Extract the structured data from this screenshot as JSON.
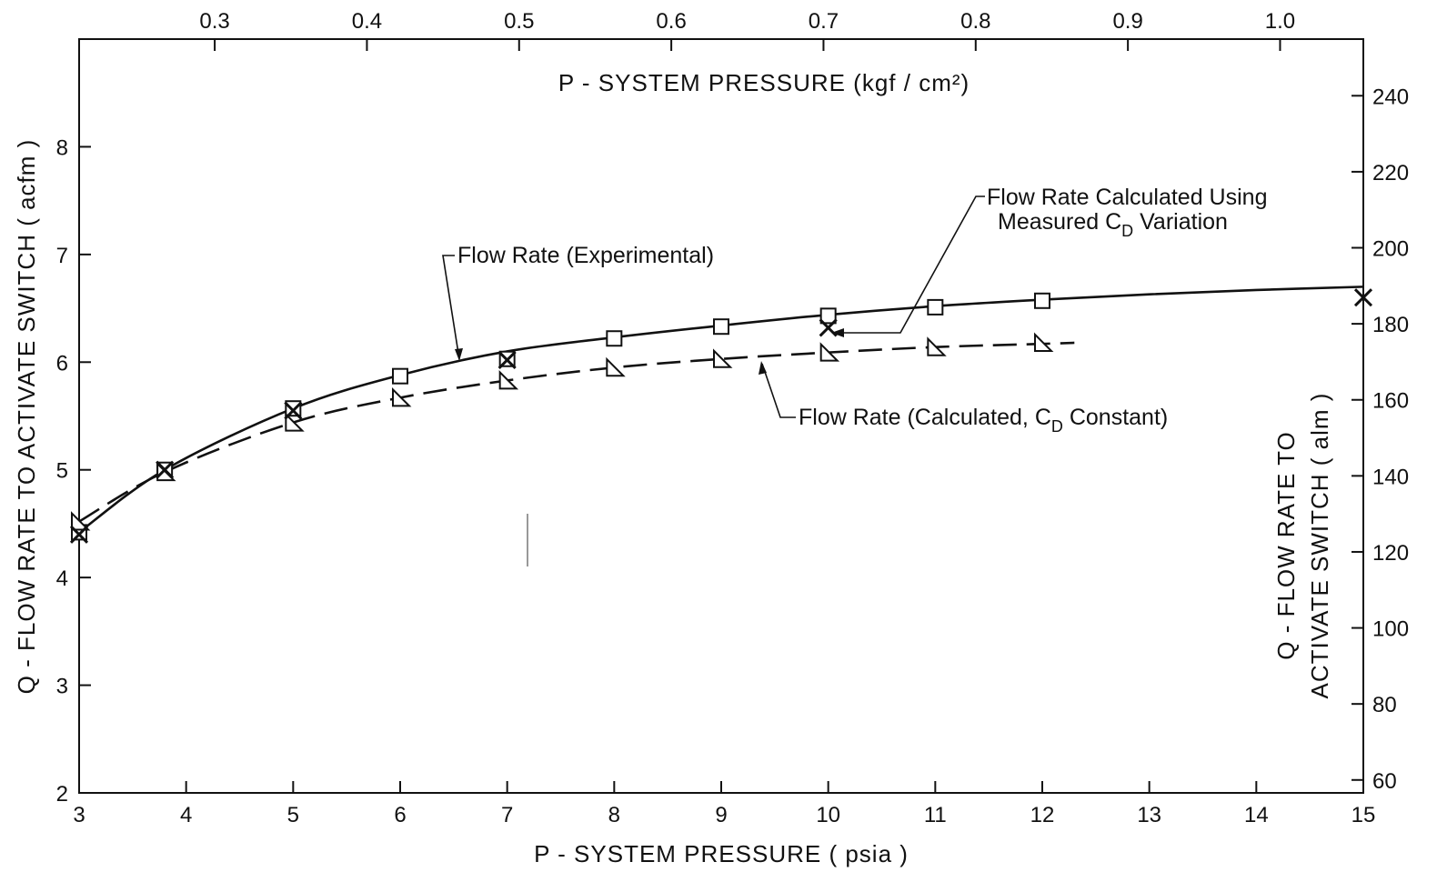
{
  "chart_data": {
    "type": "line",
    "title": "",
    "xlabel": "P - SYSTEM  PRESSURE ( psia )",
    "ylabel": "Q - FLOW RATE TO ACTIVATE SWITCH  ( acfm )",
    "top_xlabel": "P - SYSTEM  PRESSURE (kgf / cm²)",
    "right_ylabel_line1": "Q - FLOW RATE TO",
    "right_ylabel_line2": "ACTIVATE SWITCH  ( alm )",
    "xlim": [
      3,
      15
    ],
    "ylim": [
      2,
      9
    ],
    "x_ticks": [
      3,
      4,
      5,
      6,
      7,
      8,
      9,
      10,
      11,
      12,
      13,
      14,
      15
    ],
    "y_ticks": [
      2,
      3,
      4,
      5,
      6,
      7,
      8
    ],
    "top_xlim": [
      0.2109,
      1.0547
    ],
    "top_ticks": [
      "0.3",
      "0.4",
      "0.5",
      "0.6",
      "0.7",
      "0.8",
      "0.9",
      "1.0"
    ],
    "top_tick_values": [
      0.3,
      0.4,
      0.5,
      0.6,
      0.7,
      0.8,
      0.9,
      1.0
    ],
    "right_ylim": [
      56.6,
      254.9
    ],
    "right_ticks": [
      "60",
      "80",
      "100",
      "120",
      "140",
      "160",
      "180",
      "200",
      "220",
      "240"
    ],
    "right_tick_values": [
      60,
      80,
      100,
      120,
      140,
      160,
      180,
      200,
      220,
      240
    ],
    "grid": false,
    "legend": "none",
    "series": [
      {
        "key": "experimental",
        "marker": "square",
        "line": "solid",
        "curve_x": [
          3,
          3.8,
          5,
          6,
          7,
          8,
          9,
          10,
          11,
          12,
          13,
          14,
          15
        ],
        "curve_y": [
          4.42,
          5.0,
          5.57,
          5.88,
          6.1,
          6.23,
          6.34,
          6.44,
          6.52,
          6.58,
          6.63,
          6.67,
          6.7
        ],
        "x": [
          3,
          3.8,
          5,
          6,
          7,
          8,
          9,
          10,
          11,
          12
        ],
        "y": [
          4.42,
          5.0,
          5.57,
          5.87,
          6.03,
          6.22,
          6.33,
          6.43,
          6.51,
          6.57
        ]
      },
      {
        "key": "calculated_constant",
        "marker": "triangle",
        "line": "dashed",
        "curve_x": [
          3,
          3.8,
          5,
          6,
          7,
          8,
          9,
          10,
          11,
          12,
          12.3
        ],
        "curve_y": [
          4.52,
          4.98,
          5.44,
          5.67,
          5.83,
          5.95,
          6.03,
          6.09,
          6.14,
          6.17,
          6.18
        ],
        "x": [
          3,
          3.8,
          5,
          6,
          7,
          8,
          9,
          10,
          11,
          12
        ],
        "y": [
          4.52,
          4.98,
          5.44,
          5.67,
          5.83,
          5.95,
          6.03,
          6.09,
          6.14,
          6.18
        ]
      },
      {
        "key": "calculated_measured_cd",
        "marker": "x",
        "line": "none",
        "x": [
          3,
          3.8,
          5,
          7,
          10,
          15
        ],
        "y": [
          4.4,
          5.0,
          5.55,
          6.02,
          6.32,
          6.6
        ]
      }
    ],
    "annotations": [
      {
        "key": "experimental",
        "text": "Flow Rate (Experimental)"
      },
      {
        "key": "measured_line1",
        "text": "Flow Rate Calculated Using"
      },
      {
        "key": "measured_line2_pre",
        "text": "Measured C"
      },
      {
        "key": "measured_line2_sub",
        "text": "D"
      },
      {
        "key": "measured_line2_post",
        "text": " Variation"
      },
      {
        "key": "constant_pre",
        "text": "Flow Rate (Calculated, C"
      },
      {
        "key": "constant_sub",
        "text": "D"
      },
      {
        "key": "constant_post",
        "text": " Constant)"
      }
    ]
  }
}
